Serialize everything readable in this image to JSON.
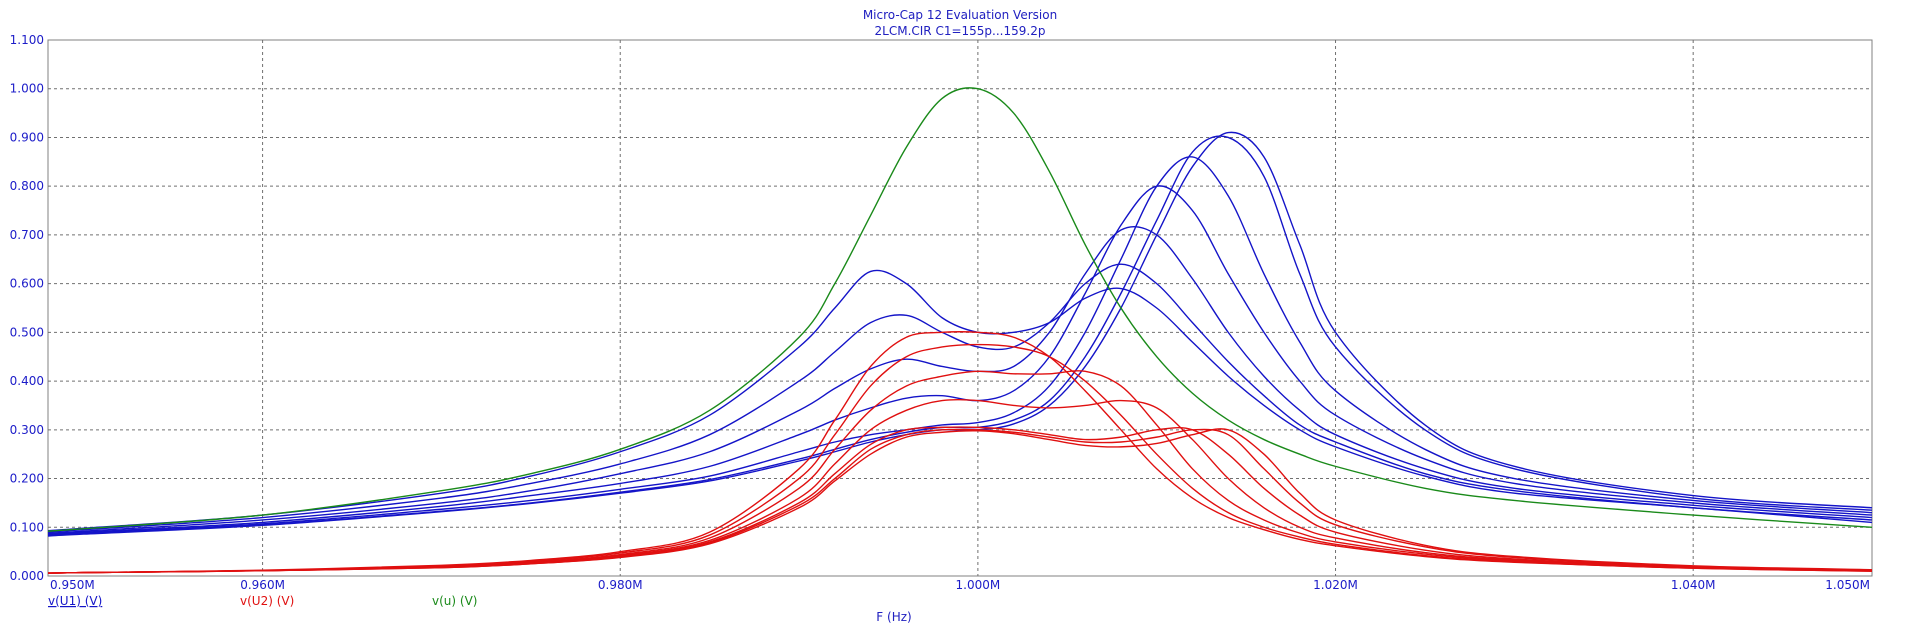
{
  "window": {
    "title_line1": "Micro-Cap 12 Evaluation Version",
    "title_line2": "2LCM.CIR C1=155p...159.2p"
  },
  "colors": {
    "plot_frame": "#808080",
    "grid": "#707070",
    "tick_text": "#1c1cc8",
    "title_text": "#2020c0",
    "v_u1": "#1414c8",
    "v_u2": "#e01010",
    "v_u": "#1a8a1a"
  },
  "chart_data": {
    "type": "line",
    "title": "Micro-Cap 12 Evaluation Version",
    "subtitle": "2LCM.CIR C1=155p...159.2p",
    "xlabel": "F (Hz)",
    "ylabel": "",
    "xlim": [
      0.948,
      1.05
    ],
    "ylim": [
      0,
      1.1
    ],
    "x_unit_note": "MHz",
    "grid": true,
    "x_ticks": [
      0.95,
      0.96,
      0.98,
      1.0,
      1.02,
      1.04,
      1.05
    ],
    "x_tick_labels": [
      "0.950M",
      "0.960M",
      "0.980M",
      "1.000M",
      "1.020M",
      "1.040M",
      "1.050M"
    ],
    "x_grid": [
      0.96,
      0.98,
      1.0,
      1.02,
      1.04
    ],
    "y_ticks": [
      0,
      0.1,
      0.2,
      0.3,
      0.4,
      0.5,
      0.6,
      0.7,
      0.8,
      0.9,
      1.0,
      1.1
    ],
    "y_tick_labels": [
      "0.000",
      "0.100",
      "0.200",
      "0.300",
      "0.400",
      "0.500",
      "0.600",
      "0.700",
      "0.800",
      "0.900",
      "1.000",
      "1.100"
    ],
    "legend": [
      {
        "label": "v(U1) (V)",
        "color": "#1414c8"
      },
      {
        "label": "v(U2) (V)",
        "color": "#e01010"
      },
      {
        "label": "v(u) (V)",
        "color": "#1a8a1a"
      }
    ],
    "x": [
      0.948,
      0.95,
      0.96,
      0.97,
      0.975,
      0.98,
      0.985,
      0.99,
      0.992,
      0.994,
      0.996,
      0.998,
      1.0,
      1.002,
      1.004,
      1.006,
      1.008,
      1.01,
      1.012,
      1.014,
      1.016,
      1.018,
      1.02,
      1.025,
      1.03,
      1.04,
      1.05
    ],
    "series": [
      {
        "group": "v(U1)",
        "color": "#1414c8",
        "values": [
          0.093,
          0.098,
          0.125,
          0.17,
          0.205,
          0.255,
          0.33,
          0.47,
          0.55,
          0.625,
          0.6,
          0.53,
          0.5,
          0.5,
          0.52,
          0.57,
          0.59,
          0.55,
          0.48,
          0.41,
          0.35,
          0.3,
          0.265,
          0.205,
          0.17,
          0.14,
          0.11
        ]
      },
      {
        "group": "v(U1)",
        "color": "#1414c8",
        "values": [
          0.09,
          0.095,
          0.12,
          0.16,
          0.19,
          0.23,
          0.29,
          0.4,
          0.46,
          0.52,
          0.535,
          0.5,
          0.47,
          0.47,
          0.52,
          0.6,
          0.64,
          0.6,
          0.52,
          0.44,
          0.37,
          0.31,
          0.275,
          0.21,
          0.175,
          0.14,
          0.115
        ]
      },
      {
        "group": "v(U1)",
        "color": "#1414c8",
        "values": [
          0.088,
          0.092,
          0.115,
          0.15,
          0.175,
          0.21,
          0.255,
          0.34,
          0.385,
          0.425,
          0.445,
          0.43,
          0.42,
          0.43,
          0.5,
          0.62,
          0.71,
          0.7,
          0.61,
          0.5,
          0.41,
          0.34,
          0.29,
          0.22,
          0.18,
          0.145,
          0.12
        ]
      },
      {
        "group": "v(U1)",
        "color": "#1414c8",
        "values": [
          0.086,
          0.09,
          0.11,
          0.143,
          0.165,
          0.19,
          0.225,
          0.29,
          0.32,
          0.345,
          0.365,
          0.37,
          0.36,
          0.38,
          0.45,
          0.58,
          0.72,
          0.8,
          0.75,
          0.62,
          0.5,
          0.4,
          0.33,
          0.24,
          0.19,
          0.15,
          0.125
        ]
      },
      {
        "group": "v(U1)",
        "color": "#1414c8",
        "values": [
          0.084,
          0.088,
          0.107,
          0.137,
          0.155,
          0.178,
          0.205,
          0.255,
          0.275,
          0.29,
          0.3,
          0.31,
          0.315,
          0.335,
          0.39,
          0.5,
          0.65,
          0.8,
          0.86,
          0.78,
          0.62,
          0.48,
          0.38,
          0.26,
          0.2,
          0.155,
          0.13
        ]
      },
      {
        "group": "v(U1)",
        "color": "#1414c8",
        "values": [
          0.083,
          0.087,
          0.105,
          0.133,
          0.15,
          0.172,
          0.198,
          0.24,
          0.26,
          0.28,
          0.295,
          0.305,
          0.305,
          0.32,
          0.36,
          0.45,
          0.58,
          0.73,
          0.87,
          0.9,
          0.82,
          0.62,
          0.47,
          0.3,
          0.22,
          0.16,
          0.135
        ]
      },
      {
        "group": "v(U1)",
        "color": "#1414c8",
        "values": [
          0.082,
          0.086,
          0.104,
          0.132,
          0.149,
          0.17,
          0.195,
          0.236,
          0.255,
          0.275,
          0.29,
          0.3,
          0.3,
          0.312,
          0.35,
          0.43,
          0.55,
          0.7,
          0.84,
          0.91,
          0.86,
          0.68,
          0.5,
          0.31,
          0.225,
          0.165,
          0.14
        ]
      },
      {
        "group": "v(U2)",
        "color": "#e01010",
        "values": [
          0.006,
          0.007,
          0.012,
          0.022,
          0.032,
          0.05,
          0.09,
          0.22,
          0.32,
          0.43,
          0.49,
          0.5,
          0.5,
          0.49,
          0.45,
          0.38,
          0.3,
          0.22,
          0.16,
          0.12,
          0.095,
          0.075,
          0.062,
          0.04,
          0.028,
          0.016,
          0.01
        ]
      },
      {
        "group": "v(U2)",
        "color": "#e01010",
        "values": [
          0.006,
          0.007,
          0.011,
          0.02,
          0.03,
          0.047,
          0.084,
          0.2,
          0.29,
          0.39,
          0.45,
          0.47,
          0.475,
          0.47,
          0.45,
          0.4,
          0.33,
          0.25,
          0.18,
          0.13,
          0.1,
          0.08,
          0.065,
          0.042,
          0.029,
          0.016,
          0.01
        ]
      },
      {
        "group": "v(U2)",
        "color": "#e01010",
        "values": [
          0.006,
          0.007,
          0.011,
          0.019,
          0.028,
          0.044,
          0.078,
          0.18,
          0.26,
          0.34,
          0.39,
          0.41,
          0.42,
          0.415,
          0.415,
          0.42,
          0.39,
          0.31,
          0.22,
          0.155,
          0.115,
          0.088,
          0.07,
          0.045,
          0.031,
          0.017,
          0.011
        ]
      },
      {
        "group": "v(U2)",
        "color": "#e01010",
        "values": [
          0.006,
          0.007,
          0.011,
          0.018,
          0.027,
          0.042,
          0.073,
          0.16,
          0.23,
          0.3,
          0.34,
          0.36,
          0.36,
          0.35,
          0.345,
          0.35,
          0.36,
          0.345,
          0.28,
          0.2,
          0.14,
          0.1,
          0.078,
          0.048,
          0.033,
          0.018,
          0.011
        ]
      },
      {
        "group": "v(U2)",
        "color": "#e01010",
        "values": [
          0.006,
          0.007,
          0.011,
          0.018,
          0.026,
          0.04,
          0.07,
          0.15,
          0.21,
          0.27,
          0.3,
          0.305,
          0.305,
          0.3,
          0.29,
          0.28,
          0.285,
          0.3,
          0.3,
          0.25,
          0.18,
          0.125,
          0.09,
          0.053,
          0.035,
          0.019,
          0.012
        ]
      },
      {
        "group": "v(U2)",
        "color": "#e01010",
        "values": [
          0.006,
          0.007,
          0.011,
          0.017,
          0.025,
          0.039,
          0.068,
          0.145,
          0.2,
          0.26,
          0.29,
          0.3,
          0.3,
          0.295,
          0.285,
          0.275,
          0.275,
          0.285,
          0.3,
          0.29,
          0.22,
          0.15,
          0.105,
          0.06,
          0.038,
          0.02,
          0.012
        ]
      },
      {
        "group": "v(U2)",
        "color": "#e01010",
        "values": [
          0.006,
          0.007,
          0.011,
          0.017,
          0.025,
          0.038,
          0.066,
          0.14,
          0.195,
          0.25,
          0.285,
          0.295,
          0.298,
          0.292,
          0.28,
          0.268,
          0.265,
          0.272,
          0.29,
          0.3,
          0.25,
          0.17,
          0.115,
          0.063,
          0.04,
          0.021,
          0.013
        ]
      },
      {
        "group": "v(u)",
        "color": "#1a8a1a",
        "values": [
          0.092,
          0.097,
          0.125,
          0.175,
          0.21,
          0.26,
          0.34,
          0.49,
          0.6,
          0.74,
          0.88,
          0.98,
          1.0,
          0.95,
          0.83,
          0.68,
          0.55,
          0.45,
          0.375,
          0.32,
          0.28,
          0.25,
          0.225,
          0.18,
          0.155,
          0.125,
          0.1
        ]
      }
    ]
  }
}
